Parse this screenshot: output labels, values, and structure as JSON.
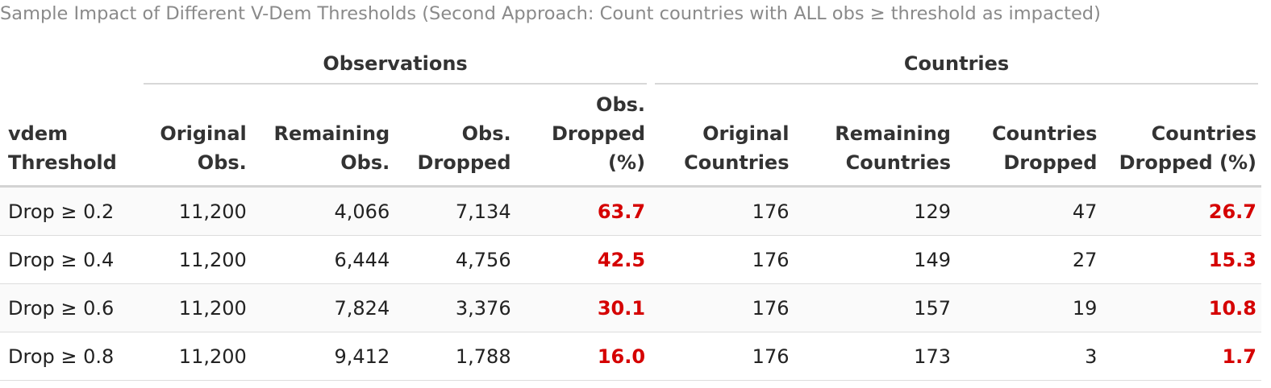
{
  "caption": "Sample Impact of Different V-Dem Thresholds (Second Approach: Count countries with ALL obs ≥ threshold as impacted)",
  "spanners": {
    "observations": "Observations",
    "countries": "Countries"
  },
  "columns": [
    [
      "vdem",
      "Threshold"
    ],
    [
      "Original",
      "Obs."
    ],
    [
      "Remaining",
      "Obs."
    ],
    [
      "Obs.",
      "Dropped"
    ],
    [
      "Obs.",
      "Dropped",
      "(%)"
    ],
    [
      "Original",
      "Countries"
    ],
    [
      "Remaining",
      "Countries"
    ],
    [
      "Countries",
      "Dropped"
    ],
    [
      "Countries",
      "Dropped (%)"
    ]
  ],
  "rows": [
    [
      "Drop ≥ 0.2",
      "11,200",
      "4,066",
      "7,134",
      "63.7",
      "176",
      "129",
      "47",
      "26.7"
    ],
    [
      "Drop ≥ 0.4",
      "11,200",
      "6,444",
      "4,756",
      "42.5",
      "176",
      "149",
      "27",
      "15.3"
    ],
    [
      "Drop ≥ 0.6",
      "11,200",
      "7,824",
      "3,376",
      "30.1",
      "176",
      "157",
      "19",
      "10.8"
    ],
    [
      "Drop ≥ 0.8",
      "11,200",
      "9,412",
      "1,788",
      "16.0",
      "176",
      "173",
      "3",
      "1.7"
    ]
  ],
  "highlight_color": "#d50000"
}
